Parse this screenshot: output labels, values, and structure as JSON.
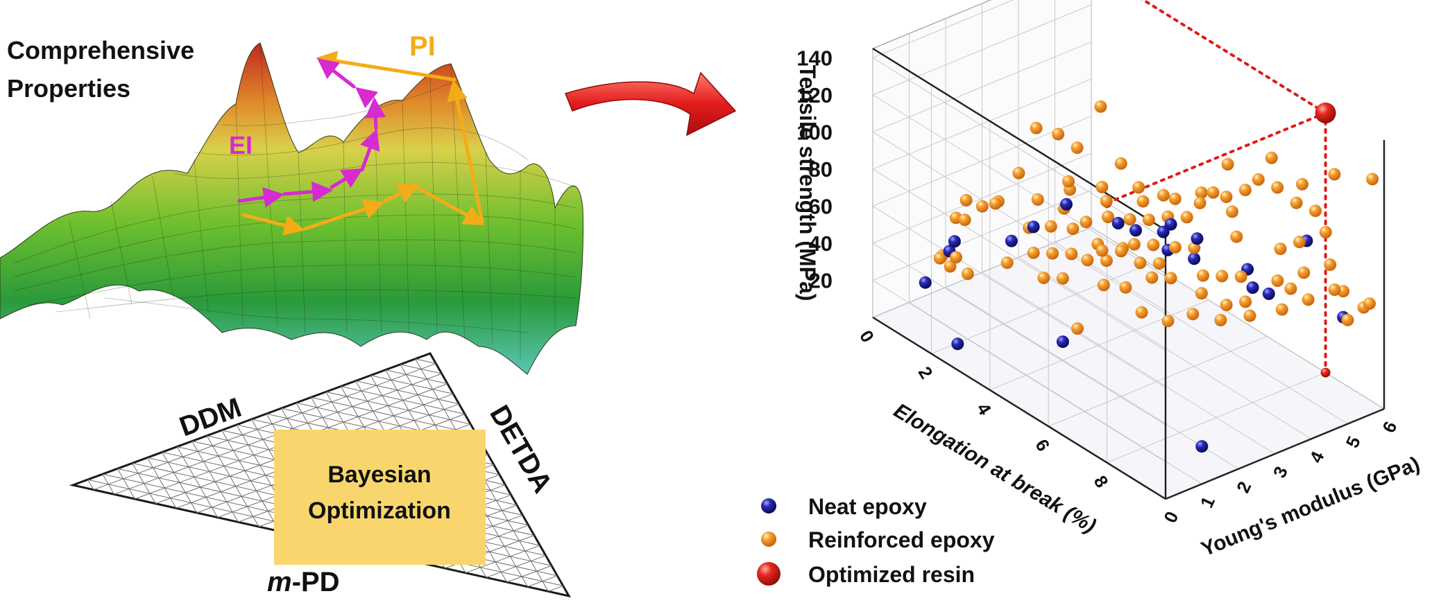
{
  "left_panel": {
    "title_line1": "Comprehensive",
    "title_line2": "Properties",
    "pi_label": "PI",
    "ei_label": "EI",
    "triangle": {
      "corner_top_left": "DDM",
      "corner_right": "DETDA",
      "corner_bottom_prefix": "m",
      "corner_bottom_suffix": "-PD",
      "box_line1": "Bayesian",
      "box_line2": "Optimization"
    }
  },
  "colors": {
    "pi_arrow": "#f3ac18",
    "ei_arrow": "#d62bd0",
    "box_fill": "#f8d66d",
    "neat": "#13137e",
    "reinforced": "#f08a17",
    "optimized": "#e01a12",
    "curved_arrow": "#e31b1b"
  },
  "chart_data": {
    "type": "scatter",
    "projection": "3d",
    "axes": {
      "z": {
        "label": "Tensile strength (MPa)",
        "ticks": [
          20,
          40,
          60,
          80,
          100,
          120,
          140
        ],
        "range": [
          0,
          145
        ]
      },
      "x": {
        "label": "Elongation at break (%)",
        "ticks": [
          0,
          2,
          4,
          6,
          8
        ],
        "range": [
          0,
          10
        ]
      },
      "y": {
        "label": "Young's modulus (GPa)",
        "ticks": [
          0,
          1,
          2,
          3,
          4,
          5,
          6
        ],
        "range": [
          0,
          6
        ]
      }
    },
    "legend": {
      "placement": "bottom-left",
      "items": [
        {
          "key": "neat",
          "label": "Neat epoxy"
        },
        {
          "key": "reinforced",
          "label": "Reinforced epoxy"
        },
        {
          "key": "optimized",
          "label": "Optimized resin"
        }
      ]
    },
    "series": [
      {
        "name": "Neat epoxy",
        "points": [
          [
            0.3,
            1.2,
            12
          ],
          [
            1.0,
            1.3,
            35
          ],
          [
            1.3,
            1.2,
            44
          ],
          [
            2.0,
            2.2,
            43
          ],
          [
            3.0,
            2.0,
            62
          ],
          [
            3.5,
            2.5,
            75
          ],
          [
            4.4,
            3.2,
            68
          ],
          [
            5.0,
            3.2,
            70
          ],
          [
            5.6,
            3.6,
            62
          ],
          [
            6.2,
            3.2,
            85
          ],
          [
            6.6,
            3.6,
            78
          ],
          [
            6.0,
            4.0,
            58
          ],
          [
            7.2,
            4.5,
            60
          ],
          [
            8.0,
            4.0,
            62
          ],
          [
            8.3,
            4.2,
            60
          ],
          [
            8.6,
            5.0,
            85
          ],
          [
            9.6,
            5.2,
            52
          ],
          [
            4.5,
            1.6,
            18
          ],
          [
            2.4,
            0.4,
            6
          ],
          [
            9.0,
            1.8,
            4
          ],
          [
            4.2,
            4.6,
            50
          ]
        ]
      },
      {
        "name": "Reinforced epoxy",
        "points": [
          [
            0.5,
            1.5,
            26
          ],
          [
            0.8,
            1.2,
            30
          ],
          [
            0.9,
            1.4,
            25
          ],
          [
            0.6,
            1.8,
            45
          ],
          [
            1.4,
            1.4,
            55
          ],
          [
            1.5,
            1.8,
            60
          ],
          [
            2.0,
            1.0,
            35
          ],
          [
            2.2,
            1.6,
            70
          ],
          [
            2.0,
            2.4,
            78
          ],
          [
            2.1,
            2.8,
            100
          ],
          [
            2.6,
            3.0,
            100
          ],
          [
            3.0,
            3.2,
            95
          ],
          [
            3.2,
            2.8,
            82
          ],
          [
            4.0,
            3.6,
            93
          ],
          [
            3.8,
            3.2,
            125
          ],
          [
            3.0,
            2.0,
            48
          ],
          [
            3.4,
            2.2,
            50
          ],
          [
            3.8,
            2.4,
            52
          ],
          [
            4.1,
            2.6,
            50
          ],
          [
            4.5,
            2.8,
            52
          ],
          [
            2.6,
            2.2,
            56
          ],
          [
            3.1,
            2.4,
            60
          ],
          [
            3.6,
            2.6,
            62
          ],
          [
            4.2,
            2.8,
            58
          ],
          [
            4.8,
            3.0,
            60
          ],
          [
            3.3,
            2.6,
            70
          ],
          [
            3.8,
            2.8,
            66
          ],
          [
            4.3,
            3.0,
            72
          ],
          [
            4.8,
            3.2,
            74
          ],
          [
            5.2,
            3.4,
            76
          ],
          [
            5.6,
            3.6,
            80
          ],
          [
            6.0,
            3.8,
            82
          ],
          [
            5.2,
            3.0,
            66
          ],
          [
            5.6,
            3.2,
            68
          ],
          [
            6.1,
            3.4,
            70
          ],
          [
            6.5,
            3.6,
            72
          ],
          [
            4.6,
            2.6,
            60
          ],
          [
            5.0,
            2.8,
            62
          ],
          [
            5.4,
            3.0,
            58
          ],
          [
            5.8,
            3.2,
            60
          ],
          [
            5.0,
            3.4,
            84
          ],
          [
            5.6,
            3.8,
            88
          ],
          [
            6.2,
            4.0,
            90
          ],
          [
            4.6,
            3.6,
            86
          ],
          [
            5.2,
            3.8,
            86
          ],
          [
            6.0,
            4.2,
            92
          ],
          [
            6.6,
            4.4,
            94
          ],
          [
            7.0,
            4.6,
            100
          ],
          [
            6.4,
            4.6,
            108
          ],
          [
            7.2,
            4.8,
            106
          ],
          [
            7.6,
            5.0,
            104
          ],
          [
            8.0,
            5.2,
            98
          ],
          [
            8.4,
            5.4,
            96
          ],
          [
            7.4,
            5.0,
            118
          ],
          [
            8.2,
            5.2,
            110
          ],
          [
            8.8,
            5.6,
            118
          ],
          [
            9.6,
            6.0,
            120
          ],
          [
            6.8,
            3.6,
            60
          ],
          [
            7.2,
            3.8,
            62
          ],
          [
            7.6,
            4.0,
            64
          ],
          [
            7.0,
            3.4,
            54
          ],
          [
            7.6,
            3.6,
            52
          ],
          [
            8.0,
            3.8,
            56
          ],
          [
            7.2,
            3.0,
            48
          ],
          [
            7.9,
            3.2,
            50
          ],
          [
            8.4,
            3.6,
            54
          ],
          [
            8.6,
            4.2,
            70
          ],
          [
            9.0,
            4.6,
            75
          ],
          [
            9.4,
            5.0,
            80
          ],
          [
            9.0,
            4.0,
            60
          ],
          [
            9.4,
            4.4,
            66
          ],
          [
            9.8,
            4.8,
            72
          ],
          [
            8.2,
            4.6,
            80
          ],
          [
            8.6,
            4.8,
            86
          ],
          [
            9.0,
            5.2,
            92
          ],
          [
            10.0,
            5.6,
            60
          ],
          [
            9.6,
            5.2,
            66
          ],
          [
            6.6,
            2.8,
            40
          ],
          [
            6.2,
            2.4,
            44
          ],
          [
            5.0,
            1.6,
            30
          ],
          [
            9.8,
            5.6,
            56
          ],
          [
            10.0,
            5.0,
            56
          ],
          [
            4.0,
            2.0,
            44
          ],
          [
            3.6,
            1.8,
            42
          ],
          [
            4.9,
            2.4,
            46
          ],
          [
            5.4,
            2.6,
            48
          ],
          [
            2.6,
            1.6,
            42
          ],
          [
            1.6,
            1.0,
            40
          ],
          [
            1.2,
            1.6,
            62
          ],
          [
            1.8,
            2.0,
            64
          ],
          [
            2.4,
            2.6,
            66
          ],
          [
            3.0,
            3.0,
            74
          ],
          [
            3.6,
            3.4,
            78
          ],
          [
            4.0,
            3.2,
            76
          ],
          [
            6.4,
            4.2,
            96
          ],
          [
            6.8,
            4.4,
            88
          ],
          [
            7.2,
            4.2,
            80
          ],
          [
            5.8,
            3.0,
            54
          ],
          [
            6.2,
            3.2,
            56
          ],
          [
            8.8,
            4.4,
            66
          ]
        ]
      },
      {
        "name": "Optimized resin",
        "points": [
          [
            8.0,
            6.0,
            140
          ]
        ]
      }
    ]
  }
}
